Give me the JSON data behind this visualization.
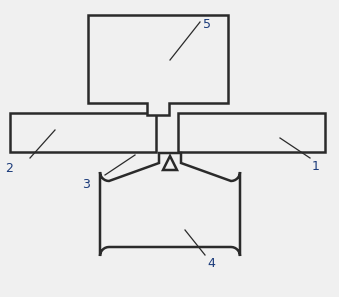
{
  "bg_color": "#f0f0f0",
  "line_color": "#2a2a2a",
  "lw": 1.8,
  "label_fontsize": 9,
  "label_color": "#1a3a7a"
}
